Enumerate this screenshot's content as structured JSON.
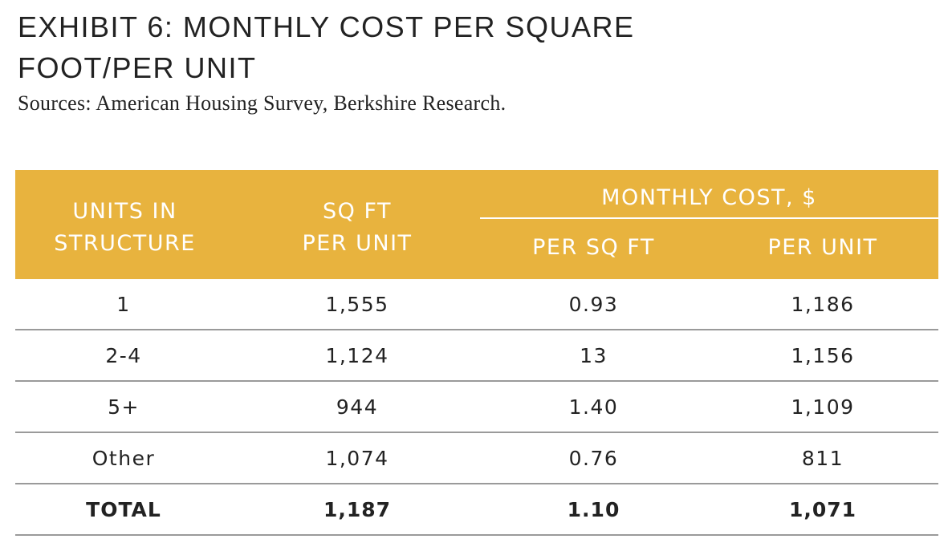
{
  "exhibit": {
    "title_line1": "EXHIBIT 6: MONTHLY COST PER SQUARE",
    "title_line2": "FOOT/PER UNIT",
    "sources": "Sources: American Housing Survey, Berkshire Research."
  },
  "table": {
    "headers": {
      "units_line1": "UNITS IN",
      "units_line2": "STRUCTURE",
      "sqft_line1": "SQ FT",
      "sqft_line2": "PER UNIT",
      "monthly_group": "MONTHLY COST, $",
      "per_sqft": "PER SQ FT",
      "per_unit": "PER UNIT"
    },
    "rows": [
      {
        "units": "1",
        "sqft": "1,555",
        "per_sqft": "0.93",
        "per_unit": "1,186"
      },
      {
        "units": "2-4",
        "sqft": "1,124",
        "per_sqft": "13",
        "per_unit": "1,156"
      },
      {
        "units": "5+",
        "sqft": "944",
        "per_sqft": "1.40",
        "per_unit": "1,109"
      },
      {
        "units": "Other",
        "sqft": "1,074",
        "per_sqft": "0.76",
        "per_unit": "811"
      }
    ],
    "total": {
      "units": "TOTAL",
      "sqft": "1,187",
      "per_sqft": "1.10",
      "per_unit": "1,071"
    }
  },
  "colors": {
    "header_background": "#E8B33E",
    "header_text": "#ffffff",
    "body_text": "#222222",
    "row_rule": "#9a9a9a"
  }
}
